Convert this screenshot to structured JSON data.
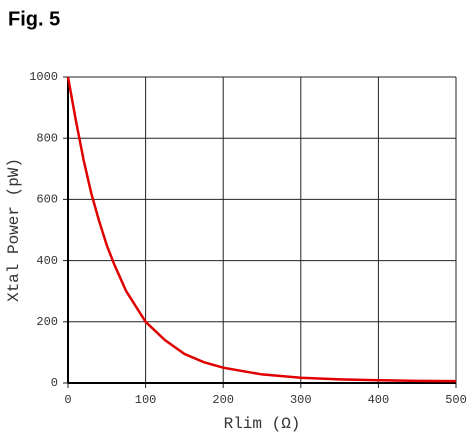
{
  "chart_data": {
    "type": "line",
    "title": "Fig. 5",
    "x_label": "Rlim (Ω)",
    "y_label": "Xtal Power (pW)",
    "x": [
      0,
      10,
      20,
      30,
      40,
      50,
      60,
      75,
      100,
      125,
      150,
      175,
      200,
      250,
      300,
      350,
      400,
      450,
      500
    ],
    "series": [
      {
        "name": "Xtal Power",
        "color": "#e00000",
        "values": [
          1000,
          860,
          730,
          620,
          530,
          450,
          385,
          300,
          200,
          140,
          95,
          68,
          50,
          28,
          17,
          12,
          9,
          7,
          6
        ]
      }
    ],
    "xlim": [
      0,
      500
    ],
    "xticks": [
      0,
      100,
      200,
      300,
      400,
      500
    ],
    "ylim": [
      0,
      1000
    ],
    "yticks": [
      0,
      200,
      400,
      600,
      800,
      1000
    ],
    "grid": true
  }
}
